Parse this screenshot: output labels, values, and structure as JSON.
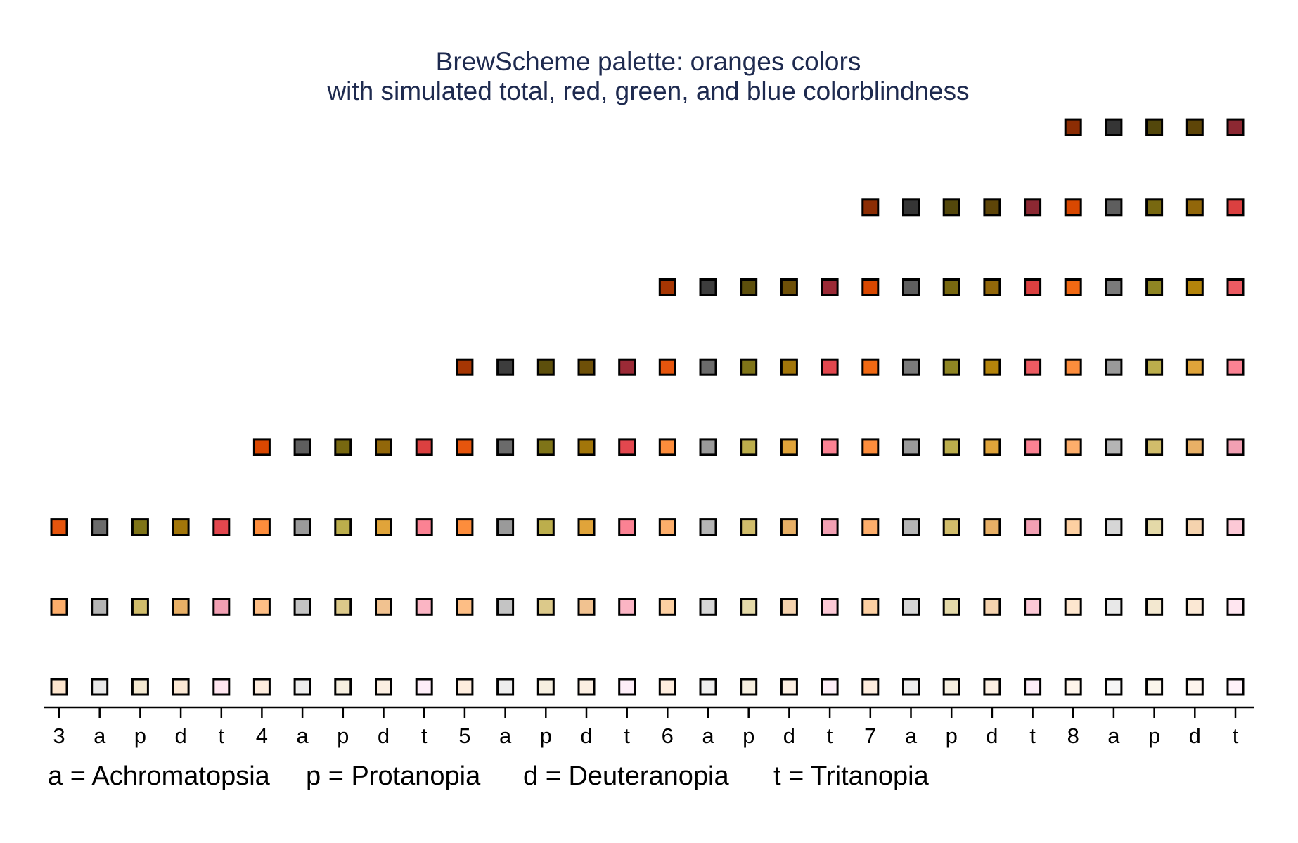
{
  "chart_data": {
    "type": "scatter",
    "title": "BrewScheme palette: oranges colors",
    "subtitle": "with simulated total, red, green, and blue colorblindness",
    "x_tick_labels": [
      "3",
      "a",
      "p",
      "d",
      "t",
      "4",
      "a",
      "p",
      "d",
      "t",
      "5",
      "a",
      "p",
      "d",
      "t",
      "6",
      "a",
      "p",
      "d",
      "t",
      "7",
      "a",
      "p",
      "d",
      "t",
      "8",
      "a",
      "p",
      "d",
      "t"
    ],
    "y_range": [
      1,
      8
    ],
    "grid": false,
    "legend": {
      "placement": "bottom-left",
      "entries": [
        "a = Achromatopsia",
        "p = Protanopia",
        "d = Deuteranopia",
        "t = Tritanopia"
      ]
    },
    "groups": [
      {
        "size": 3,
        "columns": [
          [
            "#fee6ce",
            "#fdae6b",
            "#e6550d"
          ],
          [
            "#e8e8e8",
            "#b5b5b5",
            "#6b6b6b"
          ],
          [
            "#f3e8d0",
            "#d1bd6b",
            "#7f7418"
          ],
          [
            "#fbe8d4",
            "#e8b066",
            "#a2760a"
          ],
          [
            "#ffe6f0",
            "#f2a0b3",
            "#e2474e"
          ]
        ]
      },
      {
        "size": 4,
        "columns": [
          [
            "#feedde",
            "#fdbe85",
            "#fd8d3c",
            "#d94701"
          ],
          [
            "#eeeeee",
            "#c4c4c4",
            "#9a9a9a",
            "#5e5e5e"
          ],
          [
            "#f6efe0",
            "#dcc98a",
            "#bcae4c",
            "#786810"
          ],
          [
            "#fcefe2",
            "#f1c290",
            "#e0a43a",
            "#92670a"
          ],
          [
            "#fdeef8",
            "#fbb5c4",
            "#fb8293",
            "#db4040"
          ]
        ]
      },
      {
        "size": 5,
        "columns": [
          [
            "#feedde",
            "#fdbe85",
            "#fd8d3c",
            "#e6550d",
            "#a63603"
          ],
          [
            "#eeeeee",
            "#c4c4c4",
            "#9a9a9a",
            "#6b6b6b",
            "#3d3d3d"
          ],
          [
            "#f6efe0",
            "#dcc98a",
            "#bcae4c",
            "#7f7418",
            "#5d4f0c"
          ],
          [
            "#fcefe2",
            "#f1c290",
            "#e0a43a",
            "#a2760a",
            "#6e5008"
          ],
          [
            "#fdeef8",
            "#fbb5c4",
            "#fb8293",
            "#e2474e",
            "#9b2a36"
          ]
        ]
      },
      {
        "size": 6,
        "columns": [
          [
            "#feedde",
            "#fdd0a2",
            "#fdae6b",
            "#fd8d3c",
            "#e6550d",
            "#a63603"
          ],
          [
            "#eeeeee",
            "#d6d6d6",
            "#b5b5b5",
            "#9a9a9a",
            "#6b6b6b",
            "#3d3d3d"
          ],
          [
            "#f6efe0",
            "#e4d9a8",
            "#d1bd6b",
            "#bcae4c",
            "#7f7418",
            "#5d4f0c"
          ],
          [
            "#fcefe2",
            "#f5d3ae",
            "#e8b066",
            "#e0a43a",
            "#a2760a",
            "#6e5008"
          ],
          [
            "#fdeef8",
            "#fcc9d6",
            "#f2a0b3",
            "#fb8293",
            "#e2474e",
            "#9b2a36"
          ]
        ]
      },
      {
        "size": 7,
        "columns": [
          [
            "#feedde",
            "#fdd0a2",
            "#fdae6b",
            "#fd8d3c",
            "#f16913",
            "#d94801",
            "#8c2d04"
          ],
          [
            "#eeeeee",
            "#d6d6d6",
            "#b5b5b5",
            "#9a9a9a",
            "#7a7a7a",
            "#5e5e5e",
            "#353535"
          ],
          [
            "#f6efe0",
            "#e4d9a8",
            "#d1bd6b",
            "#bcae4c",
            "#8f8523",
            "#786810",
            "#53470b"
          ],
          [
            "#fcefe2",
            "#f5d3ae",
            "#e8b066",
            "#e0a43a",
            "#b4840b",
            "#92670a",
            "#5e4508"
          ],
          [
            "#fdeef8",
            "#fcc9d6",
            "#f2a0b3",
            "#fb8293",
            "#ec5b62",
            "#db4040",
            "#8c2832"
          ]
        ]
      },
      {
        "size": 8,
        "columns": [
          [
            "#fff5eb",
            "#fee6ce",
            "#fdd0a2",
            "#fdae6b",
            "#fd8d3c",
            "#f16913",
            "#d94801",
            "#8c2d04"
          ],
          [
            "#f6f6f6",
            "#e8e8e8",
            "#d6d6d6",
            "#b5b5b5",
            "#9a9a9a",
            "#7a7a7a",
            "#5e5e5e",
            "#353535"
          ],
          [
            "#fbf6ec",
            "#f3e8d0",
            "#e4d9a8",
            "#d1bd6b",
            "#bcae4c",
            "#8f8523",
            "#786810",
            "#53470b"
          ],
          [
            "#fef5ee",
            "#fbe8d4",
            "#f5d3ae",
            "#e8b066",
            "#e0a43a",
            "#b4840b",
            "#92670a",
            "#5e4508"
          ],
          [
            "#fff3fa",
            "#ffe6f0",
            "#fcc9d6",
            "#f2a0b3",
            "#fb8293",
            "#ec5b62",
            "#db4040",
            "#8c2832"
          ]
        ]
      }
    ]
  }
}
